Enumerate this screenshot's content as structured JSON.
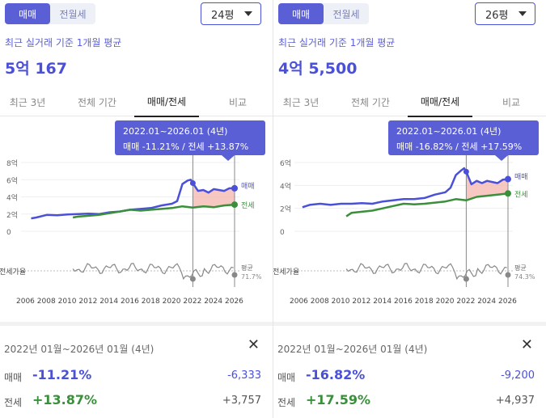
{
  "panels": [
    {
      "toggle": [
        "매매",
        "전월세"
      ],
      "size": "24평",
      "subtitle": "최근 실거래 기준 1개월 평균",
      "price": "5억 167",
      "tabs": [
        "최근 3년",
        "전체 기간",
        "매매/전세",
        "비교"
      ],
      "tooltip_range": "2022.01~2026.01 (4년)",
      "tooltip_detail": "매매 -11.21%  /  전세 +13.87%",
      "summary_range": "2022년 01월~2026년 01월 (4년)",
      "sale_label": "매매",
      "sale_pct": "-11.21%",
      "sale_amt": "-6,333",
      "rent_label": "전세",
      "rent_pct": "+13.87%",
      "rent_amt": "+3,757",
      "colors": {
        "sale": "#4a50d8",
        "rent": "#3a8f3a",
        "ratio": "#888888",
        "highlight": "#f4b6ad"
      }
    },
    {
      "toggle": [
        "매매",
        "전월세"
      ],
      "size": "26평",
      "subtitle": "최근 실거래 기준 1개월 평균",
      "price": "4억 5,500",
      "tabs": [
        "최근 3년",
        "전체 기간",
        "매매/전세",
        "비교"
      ],
      "tooltip_range": "2022.01~2026.01 (4년)",
      "tooltip_detail": "매매 -16.82%  /  전세 +17.59%",
      "summary_range": "2022년 01월~2026년 01월 (4년)",
      "sale_label": "매매",
      "sale_pct": "-16.82%",
      "sale_amt": "-9,200",
      "rent_label": "전세",
      "rent_pct": "+17.59%",
      "rent_amt": "+4,937",
      "colors": {
        "sale": "#4a50d8",
        "rent": "#3a8f3a",
        "ratio": "#888888",
        "highlight": "#f4b6ad"
      }
    }
  ],
  "chart_data": [
    {
      "type": "line",
      "yticks": [
        "8억",
        "6억",
        "4억",
        "2억",
        "0"
      ],
      "ylim": [
        0,
        8
      ],
      "xticks": [
        "2006",
        "2008",
        "2010",
        "2012",
        "2014",
        "2016",
        "2018",
        "2020",
        "2022",
        "2024",
        "2026"
      ],
      "series": [
        {
          "name": "매매",
          "x": [
            2006.5,
            2007,
            2008,
            2009,
            2010,
            2011,
            2012,
            2013,
            2014,
            2015,
            2016,
            2017,
            2018,
            2019,
            2020,
            2020.5,
            2021,
            2021.5,
            2021.8,
            2022,
            2022.5,
            2023,
            2023.5,
            2024,
            2024.5,
            2025,
            2025.5,
            2026
          ],
          "values": [
            1.5,
            1.6,
            1.9,
            1.85,
            1.95,
            2.0,
            2.05,
            2.0,
            2.2,
            2.3,
            2.5,
            2.6,
            2.7,
            3.0,
            3.2,
            3.5,
            5.5,
            5.9,
            6.0,
            5.6,
            4.7,
            4.8,
            4.5,
            4.9,
            4.8,
            4.7,
            5.0,
            5.0
          ]
        },
        {
          "name": "전세",
          "x": [
            2010.5,
            2011,
            2012,
            2013,
            2014,
            2015,
            2016,
            2017,
            2018,
            2019,
            2020,
            2021,
            2022,
            2023,
            2024,
            2025,
            2026
          ],
          "values": [
            1.6,
            1.7,
            1.8,
            1.9,
            2.1,
            2.3,
            2.5,
            2.4,
            2.5,
            2.6,
            2.7,
            2.9,
            2.75,
            2.9,
            2.8,
            3.0,
            3.1
          ]
        }
      ],
      "ratio": {
        "label": "전세가율",
        "end_label": "평균",
        "end_value": "71.7%"
      },
      "highlight_range": [
        2022,
        2026
      ]
    },
    {
      "type": "line",
      "yticks": [
        "6억",
        "4억",
        "2억",
        "0"
      ],
      "ylim": [
        0,
        6
      ],
      "xticks": [
        "2006",
        "2008",
        "2010",
        "2012",
        "2014",
        "2016",
        "2018",
        "2020",
        "2022",
        "2024",
        "2026"
      ],
      "series": [
        {
          "name": "매매",
          "x": [
            2006.3,
            2007,
            2008,
            2009,
            2010,
            2011,
            2012,
            2013,
            2014,
            2015,
            2016,
            2017,
            2018,
            2019,
            2020,
            2020.5,
            2021,
            2021.5,
            2021.8,
            2022,
            2022.5,
            2023,
            2023.5,
            2024,
            2024.5,
            2025,
            2025.5,
            2026
          ],
          "values": [
            2.1,
            2.3,
            2.4,
            2.3,
            2.4,
            2.4,
            2.45,
            2.4,
            2.6,
            2.7,
            2.8,
            2.8,
            2.9,
            3.2,
            3.4,
            3.8,
            4.9,
            5.3,
            5.5,
            5.2,
            4.1,
            4.4,
            4.2,
            4.4,
            4.3,
            4.2,
            4.5,
            4.55
          ]
        },
        {
          "name": "전세",
          "x": [
            2010.5,
            2011,
            2012,
            2013,
            2014,
            2015,
            2016,
            2017,
            2018,
            2019,
            2020,
            2021,
            2022,
            2023,
            2024,
            2025,
            2026
          ],
          "values": [
            1.3,
            1.6,
            1.7,
            1.8,
            2.0,
            2.2,
            2.4,
            2.35,
            2.4,
            2.5,
            2.6,
            2.8,
            2.7,
            3.0,
            3.1,
            3.2,
            3.3
          ]
        }
      ],
      "ratio": {
        "label": "전세가율",
        "end_label": "평균",
        "end_value": "74.3%"
      },
      "highlight_range": [
        2022,
        2026
      ]
    }
  ]
}
